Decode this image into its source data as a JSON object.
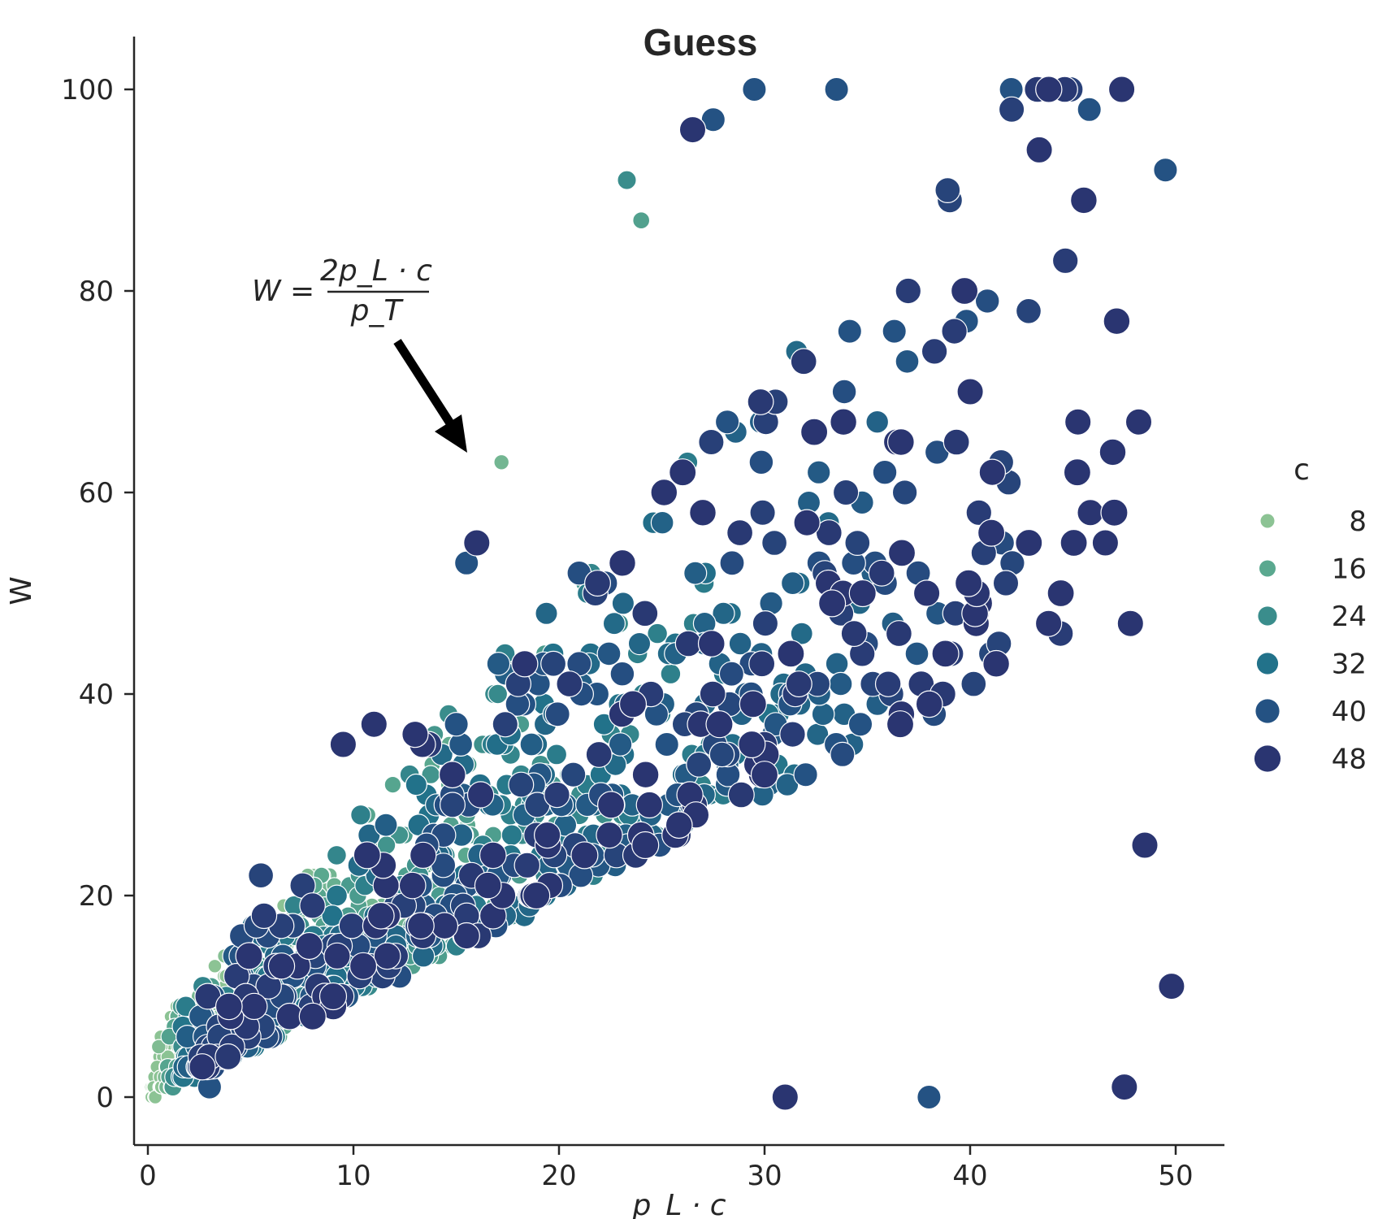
{
  "chart_data": {
    "type": "scatter",
    "title": "Guess",
    "xlabel": "p_L · c",
    "ylabel": "W",
    "xlim": [
      -0.7,
      52.5
    ],
    "ylim": [
      -5,
      105
    ],
    "xticks": [
      0,
      10,
      20,
      30,
      40,
      50
    ],
    "yticks": [
      0,
      20,
      40,
      60,
      80,
      100
    ],
    "grid": false,
    "hue_variable": "c",
    "legend": {
      "title": "c",
      "placement": "right",
      "entries": [
        {
          "label": "8",
          "value": 8,
          "color": "#8cc394"
        },
        {
          "label": "16",
          "value": 16,
          "color": "#5aa88f"
        },
        {
          "label": "24",
          "value": 24,
          "color": "#3a8d8c"
        },
        {
          "label": "32",
          "value": 32,
          "color": "#22728a"
        },
        {
          "label": "40",
          "value": 40,
          "color": "#245283"
        },
        {
          "label": "48",
          "value": 48,
          "color": "#2a3571"
        }
      ]
    },
    "annotation": {
      "text_left": "W = ",
      "numerator": "2p_L · c",
      "denominator": "p_T",
      "arrow_from": [
        12.0,
        75
      ],
      "arrow_to": [
        15.5,
        63
      ]
    },
    "points_relation": "W ≈ 2·p_L·c / p_T with c from 2 to 50 and p_T random; dense cloud under the diagonal",
    "n_points": 1600,
    "sample_points": [
      {
        "x": 2.5,
        "y": 7,
        "c": 3
      },
      {
        "x": 3.0,
        "y": 1,
        "c": 40
      },
      {
        "x": 5.5,
        "y": 22,
        "c": 44
      },
      {
        "x": 6.5,
        "y": 13,
        "c": 48
      },
      {
        "x": 9.5,
        "y": 35,
        "c": 48
      },
      {
        "x": 11.0,
        "y": 37,
        "c": 48
      },
      {
        "x": 13.0,
        "y": 36,
        "c": 48
      },
      {
        "x": 15.5,
        "y": 53,
        "c": 40
      },
      {
        "x": 16.0,
        "y": 55,
        "c": 48
      },
      {
        "x": 17.2,
        "y": 63,
        "c": 12
      },
      {
        "x": 23.3,
        "y": 91,
        "c": 24
      },
      {
        "x": 24.0,
        "y": 87,
        "c": 18
      },
      {
        "x": 26.5,
        "y": 96,
        "c": 48
      },
      {
        "x": 27.5,
        "y": 97,
        "c": 40
      },
      {
        "x": 29.5,
        "y": 100,
        "c": 40
      },
      {
        "x": 33.5,
        "y": 100,
        "c": 40
      },
      {
        "x": 42.0,
        "y": 100,
        "c": 40
      },
      {
        "x": 45.8,
        "y": 98,
        "c": 40
      },
      {
        "x": 49.5,
        "y": 92,
        "c": 40
      },
      {
        "x": 49.8,
        "y": 11,
        "c": 48
      },
      {
        "x": 47.5,
        "y": 1,
        "c": 48
      },
      {
        "x": 48.5,
        "y": 25,
        "c": 48
      },
      {
        "x": 47.8,
        "y": 47,
        "c": 48
      },
      {
        "x": 48.2,
        "y": 67,
        "c": 48
      },
      {
        "x": 31.0,
        "y": 0,
        "c": 48
      },
      {
        "x": 38.0,
        "y": 0,
        "c": 40
      }
    ]
  }
}
